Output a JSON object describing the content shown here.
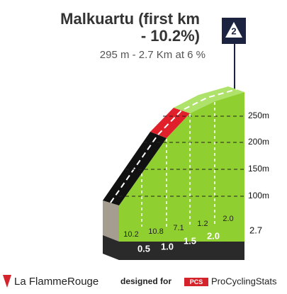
{
  "header": {
    "title_line1": "Malkuartu (first km",
    "title_line2": "- 10.2%)",
    "subtitle": "295 m - 2.7 Km at 6 %",
    "category": "2"
  },
  "profile": {
    "altitudes": [
      "250m",
      "200m",
      "150m",
      "100m"
    ],
    "gradients": [
      "10.2",
      "10.8",
      "7.1",
      "1.2",
      "2.0"
    ],
    "distances": [
      "0.5",
      "1.0",
      "1.5",
      "2.0"
    ],
    "total_distance": "2.7"
  },
  "footer": {
    "brand": "La FlammeRouge",
    "designed_for": "designed for",
    "pcs_logo": "PCS",
    "pcs": "ProCyclingStats"
  }
}
